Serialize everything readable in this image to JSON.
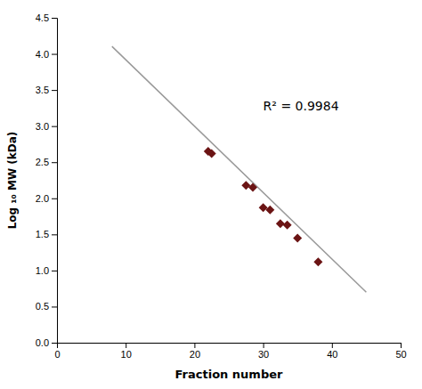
{
  "chart_data": {
    "type": "scatter",
    "xlabel": "Fraction number",
    "ylabel": "Log ₁₀ MW (kDa)",
    "series": [
      {
        "type": "scatter",
        "color": "#6B1414",
        "marker": "diamond",
        "x": [
          22,
          22.5,
          27.5,
          28.5,
          30,
          31,
          32.5,
          33.5,
          35,
          38
        ],
        "values": [
          2.65,
          2.62,
          2.18,
          2.15,
          1.87,
          1.84,
          1.65,
          1.63,
          1.45,
          1.12
        ]
      },
      {
        "type": "line",
        "color": "#999999",
        "line_style": "solid",
        "x": [
          8,
          45
        ],
        "values": [
          4.104,
          0.7
        ]
      }
    ],
    "annotations": [
      {
        "text": "R² = 0.9984",
        "x": 30,
        "y": 3.28
      }
    ],
    "xlim": [
      0,
      50
    ],
    "ylim": [
      0,
      4.5
    ],
    "xticks": [
      0,
      10,
      20,
      30,
      40,
      50
    ],
    "yticks": [
      {
        "value": 0,
        "label": "0.0"
      },
      0.5,
      {
        "value": 1.0,
        "label": "1.0"
      },
      1.5,
      {
        "value": 2.0,
        "label": "2.0"
      },
      2.5,
      {
        "value": 3.0,
        "label": "3.0"
      },
      3.5,
      {
        "value": 4.0,
        "label": "4.0"
      },
      4.5
    ],
    "grid": false
  }
}
